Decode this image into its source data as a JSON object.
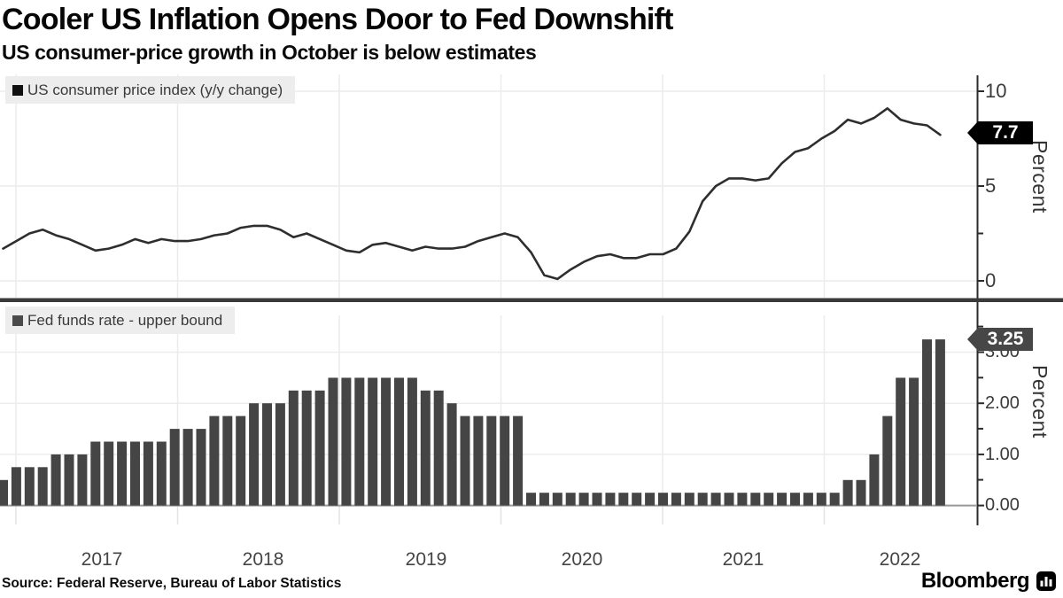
{
  "header": {
    "title": "Cooler US Inflation Opens Door to Fed Downshift",
    "subtitle": "US consumer-price growth in October is below estimates"
  },
  "footer": {
    "source": "Source: Federal Reserve, Bureau of Labor Statistics",
    "brand": "Bloomberg"
  },
  "x_axis": {
    "labels": [
      "2017",
      "2018",
      "2019",
      "2020",
      "2021",
      "2022"
    ]
  },
  "colors": {
    "line": "#2e2e2e",
    "bar": "#454545",
    "top_tag_bg": "#000000",
    "bottom_tag_bg": "#474747",
    "legend_bg": "#ededed",
    "grid": "#ececec"
  },
  "chart_data": [
    {
      "type": "line",
      "legend": "US consumer price index (y/y change)",
      "ylabel": "Percent",
      "yticks": [
        "10",
        "5",
        "0"
      ],
      "ylim": [
        0,
        10.8
      ],
      "legend_position": "top-left",
      "grid": "on",
      "end_label": "7.7",
      "x_start": "2016-11",
      "x_end": "2022-10",
      "frequency": "monthly",
      "values": [
        1.7,
        2.1,
        2.5,
        2.7,
        2.4,
        2.2,
        1.9,
        1.6,
        1.7,
        1.9,
        2.2,
        2.0,
        2.2,
        2.1,
        2.1,
        2.2,
        2.4,
        2.5,
        2.8,
        2.9,
        2.9,
        2.7,
        2.3,
        2.5,
        2.2,
        1.9,
        1.6,
        1.5,
        1.9,
        2.0,
        1.8,
        1.6,
        1.8,
        1.7,
        1.7,
        1.8,
        2.1,
        2.3,
        2.5,
        2.3,
        1.5,
        0.3,
        0.1,
        0.6,
        1.0,
        1.3,
        1.4,
        1.2,
        1.2,
        1.4,
        1.4,
        1.7,
        2.6,
        4.2,
        5.0,
        5.4,
        5.4,
        5.3,
        5.4,
        6.2,
        6.8,
        7.0,
        7.5,
        7.9,
        8.5,
        8.3,
        8.6,
        9.1,
        8.5,
        8.3,
        8.2,
        7.7
      ]
    },
    {
      "type": "bar",
      "legend": "Fed funds rate - upper bound",
      "ylabel": "Percent",
      "yticks": [
        "3.00",
        "2.00",
        "1.00",
        "0.00"
      ],
      "ylim": [
        0,
        3.73
      ],
      "legend_position": "top-left",
      "grid": "on",
      "end_label": "3.25",
      "x_start": "2016-11",
      "x_end": "2022-10",
      "frequency": "monthly",
      "values": [
        0.5,
        0.75,
        0.75,
        0.75,
        1.0,
        1.0,
        1.0,
        1.25,
        1.25,
        1.25,
        1.25,
        1.25,
        1.25,
        1.5,
        1.5,
        1.5,
        1.75,
        1.75,
        1.75,
        2.0,
        2.0,
        2.0,
        2.25,
        2.25,
        2.25,
        2.5,
        2.5,
        2.5,
        2.5,
        2.5,
        2.5,
        2.5,
        2.25,
        2.25,
        2.0,
        1.75,
        1.75,
        1.75,
        1.75,
        1.75,
        0.25,
        0.25,
        0.25,
        0.25,
        0.25,
        0.25,
        0.25,
        0.25,
        0.25,
        0.25,
        0.25,
        0.25,
        0.25,
        0.25,
        0.25,
        0.25,
        0.25,
        0.25,
        0.25,
        0.25,
        0.25,
        0.25,
        0.25,
        0.25,
        0.5,
        0.5,
        1.0,
        1.75,
        2.5,
        2.5,
        3.25,
        3.25
      ]
    }
  ]
}
